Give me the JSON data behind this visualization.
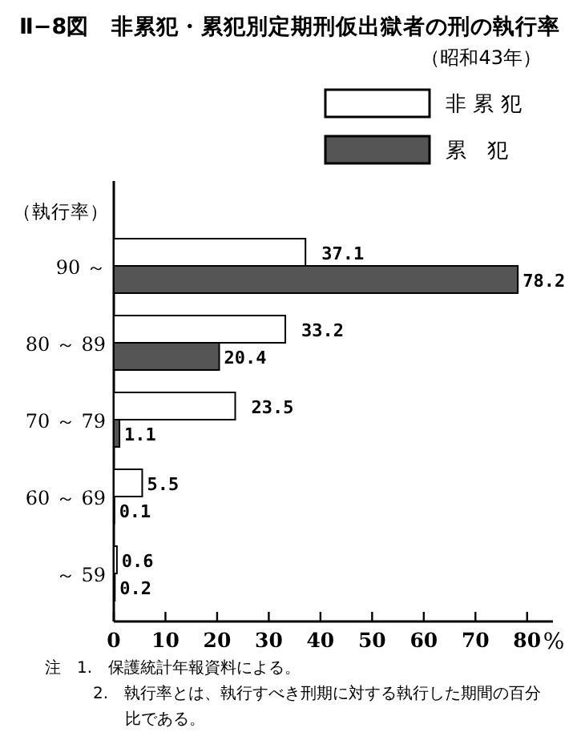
{
  "chart_data": {
    "type": "bar",
    "orientation": "horizontal",
    "title": "Ⅱ−8図　非累犯・累犯別定期刑仮出獄者の刑の執行率",
    "subtitle": "（昭和43年）",
    "ylabel": "（執行率）",
    "xlabel": "%",
    "categories": [
      "90 ～",
      "80 ～ 89",
      "70 ～ 79",
      "60 ～ 69",
      "～ 59"
    ],
    "series": [
      {
        "name": "非 累 犯",
        "color": "#ffffff",
        "values": [
          37.1,
          33.2,
          23.5,
          5.5,
          0.6
        ]
      },
      {
        "name": "累　犯",
        "color": "#555555",
        "values": [
          78.2,
          20.4,
          1.1,
          0.1,
          0.2
        ]
      }
    ],
    "xlim": [
      0,
      85
    ],
    "xticks": [
      0,
      10,
      20,
      30,
      40,
      50,
      60,
      70,
      80
    ],
    "data_labels": true,
    "legend": "top right",
    "annotations": [
      "注　1.　保護統計年報資料による。",
      "2.　執行率とは、執行すべき刑期に対する執行した期間の百分比である。"
    ]
  }
}
